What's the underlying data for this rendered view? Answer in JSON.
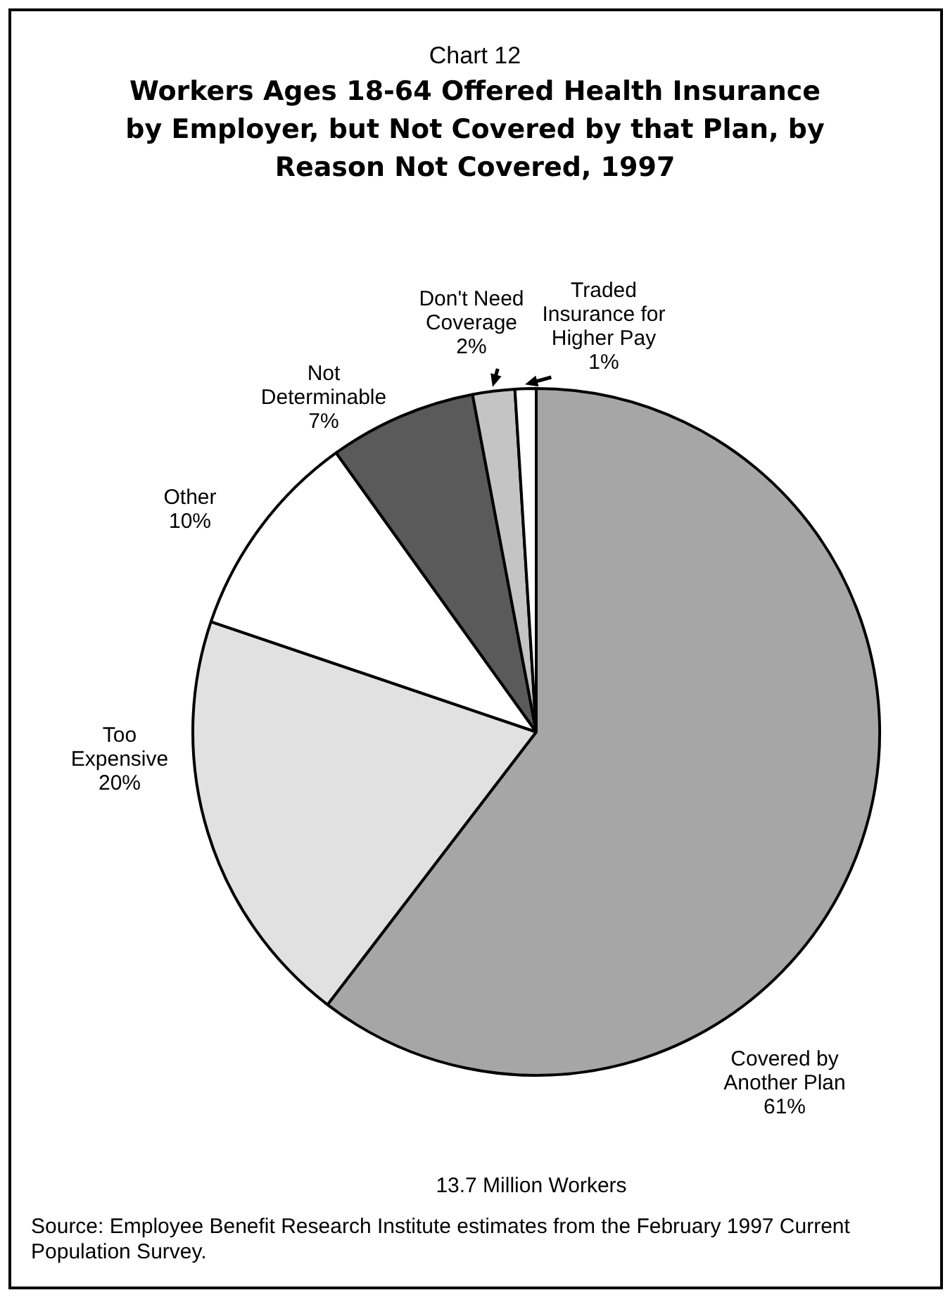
{
  "chart_data": {
    "type": "pie",
    "subtitle": "Chart 12",
    "title": "Workers Ages 18-64 Offered Health Insurance by Employer, but Not Covered by that Plan, by Reason Not Covered, 1997",
    "categories": [
      "Covered by Another Plan",
      "Too Expensive",
      "Other",
      "Not Determinable",
      "Don't Need Coverage",
      "Traded Insurance for Higher Pay"
    ],
    "values": [
      61,
      20,
      10,
      7,
      2,
      1
    ],
    "value_labels": [
      "61%",
      "20%",
      "10%",
      "7%",
      "2%",
      "1%"
    ],
    "colors": [
      "#a6a6a6",
      "#e1e1e1",
      "#ffffff",
      "#5a5a5a",
      "#c4c4c4",
      "#ffffff"
    ],
    "legend": false,
    "annotations": [
      "13.7 Million Workers",
      "Source: Employee Benefit Research Institute estimates from the February 1997 Current Population Survey."
    ]
  }
}
